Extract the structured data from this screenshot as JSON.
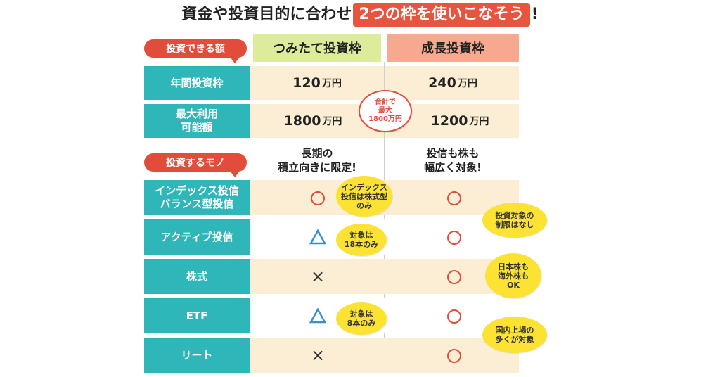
{
  "title": {
    "part1": "資金や投資目的に合わせ",
    "highlight": "2つの枠を使いこなそう",
    "part2": "!"
  },
  "section_labels": {
    "amount": "投資できる額",
    "targets": "投資するモノ"
  },
  "columns": {
    "tsumitate": "つみたて投資枠",
    "growth": "成長投資枠"
  },
  "rows": {
    "annual": {
      "label": "年間投資枠",
      "tsumitate_num": "120",
      "tsumitate_unit": "万円",
      "growth_num": "240",
      "growth_unit": "万円"
    },
    "max": {
      "label_line1": "最大利用",
      "label_line2": "可能額",
      "tsumitate_num": "1800",
      "tsumitate_unit": "万円",
      "growth_num": "1200",
      "growth_unit": "万円"
    }
  },
  "total_bubble": {
    "line1": "合計で",
    "line2": "最大",
    "line3": "1800万円"
  },
  "target_heads": {
    "tsumitate_line1": "長期の",
    "tsumitate_line2": "積立向きに限定!",
    "growth_line1": "投信も株も",
    "growth_line2": "幅広く対象!"
  },
  "products": [
    {
      "label_line1": "インデックス投信",
      "label_line2": "バランス型投信",
      "tsumitate": "○",
      "growth": "○"
    },
    {
      "label_line1": "アクティブ投信",
      "label_line2": "",
      "tsumitate": "△",
      "growth": "○"
    },
    {
      "label_line1": "株式",
      "label_line2": "",
      "tsumitate": "×",
      "growth": "○"
    },
    {
      "label_line1": "ETF",
      "label_line2": "",
      "tsumitate": "△",
      "growth": "○"
    },
    {
      "label_line1": "リート",
      "label_line2": "",
      "tsumitate": "×",
      "growth": "○"
    }
  ],
  "notes": {
    "index": {
      "line1": "インデックス",
      "line2": "投信は株式型",
      "line3": "のみ"
    },
    "active": {
      "line1": "対象は",
      "line2": "18本のみ"
    },
    "etf": {
      "line1": "対象は",
      "line2": "8本のみ"
    },
    "growth_all": {
      "line1": "投資対象の",
      "line2": "制限はなし"
    },
    "stocks": {
      "line1": "日本株も",
      "line2": "海外株も",
      "line3": "OK"
    },
    "reit": {
      "line1": "国内上場の",
      "line2": "多くが対象"
    }
  },
  "colors": {
    "teal": "#2eb6b8",
    "red": "#e24c3a",
    "beige": "#fbeed4",
    "tsumitate_header": "#dcec9a",
    "growth_header": "#f6a98f",
    "bubble_yellow": "#fbe233",
    "triangle_blue": "#3a8ed6"
  }
}
